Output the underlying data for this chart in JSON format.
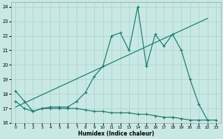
{
  "xlabel": "Humidex (Indice chaleur)",
  "bg_color": "#c8e8e4",
  "line_color": "#1e7b6e",
  "grid_color": "#a8d0cc",
  "xlim": [
    -0.5,
    23.5
  ],
  "ylim": [
    16,
    24.3
  ],
  "xticks": [
    0,
    1,
    2,
    3,
    4,
    5,
    6,
    7,
    8,
    9,
    10,
    11,
    12,
    13,
    14,
    15,
    16,
    17,
    18,
    19,
    20,
    21,
    22,
    23
  ],
  "yticks": [
    16,
    17,
    18,
    19,
    20,
    21,
    22,
    23,
    24
  ],
  "line1_x": [
    0,
    1,
    2,
    3,
    4,
    5,
    6,
    7,
    8,
    9,
    10,
    11,
    12,
    13,
    14,
    15,
    16,
    17,
    18,
    19,
    20,
    21,
    22
  ],
  "line1_y": [
    18.2,
    17.5,
    16.8,
    17.0,
    17.1,
    17.1,
    17.1,
    17.5,
    18.1,
    19.2,
    19.9,
    22.0,
    22.2,
    21.0,
    24.0,
    19.9,
    22.1,
    21.3,
    22.1,
    21.0,
    19.0,
    17.3,
    16.2
  ],
  "line2_x": [
    0,
    1,
    2,
    3,
    4,
    5,
    6,
    7,
    8,
    9,
    10,
    11,
    12,
    13,
    14,
    15,
    16,
    17,
    18,
    19,
    20,
    21,
    22,
    23
  ],
  "line2_y": [
    17.5,
    17.0,
    16.8,
    17.0,
    17.0,
    17.0,
    17.0,
    17.0,
    16.9,
    16.8,
    16.8,
    16.7,
    16.7,
    16.7,
    16.6,
    16.6,
    16.5,
    16.4,
    16.4,
    16.3,
    16.2,
    16.2,
    16.2,
    16.2
  ],
  "line3_x": [
    0,
    22
  ],
  "line3_y": [
    17.1,
    23.2
  ]
}
